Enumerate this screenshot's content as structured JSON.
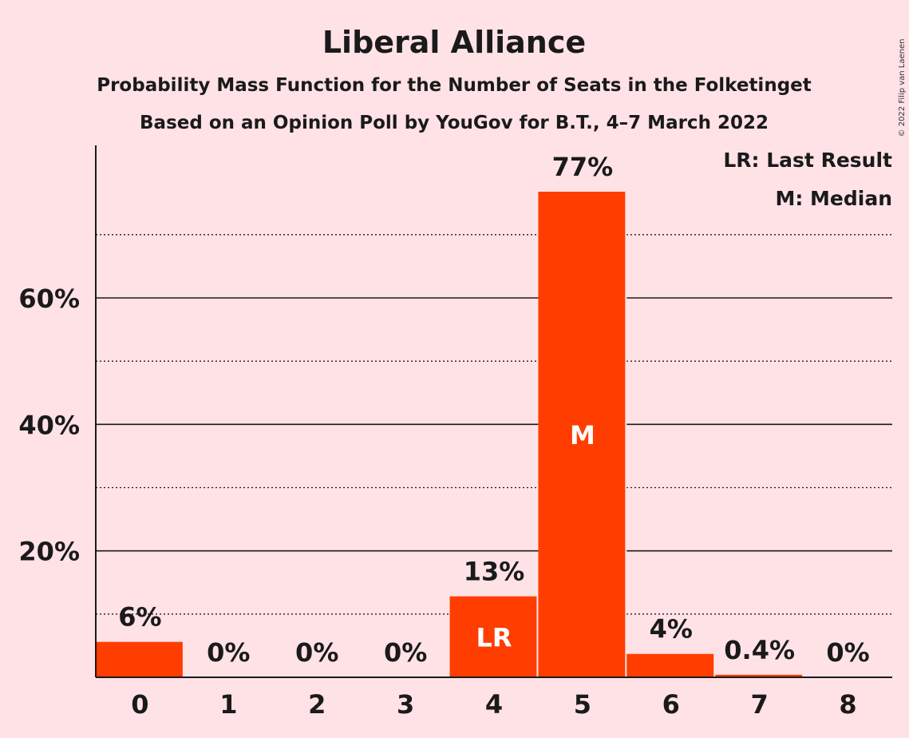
{
  "title": "Liberal Alliance",
  "subtitle1": "Probability Mass Function for the Number of Seats in the Folketinget",
  "subtitle2": "Based on an Opinion Poll by YouGov for B.T., 4–7 March 2022",
  "copyright": "© 2022 Filip van Laenen",
  "legend": [
    "LR: Last Result",
    "M: Median"
  ],
  "colors": {
    "bar": "#ff3d00",
    "background": "#ffe2e6",
    "text": "#1a1a1a"
  },
  "chart_data": {
    "type": "bar",
    "categories": [
      "0",
      "1",
      "2",
      "3",
      "4",
      "5",
      "6",
      "7",
      "8"
    ],
    "values": [
      5.6,
      0,
      0,
      0,
      12.8,
      76.8,
      3.7,
      0.4,
      0
    ],
    "data_labels": [
      "6%",
      "0%",
      "0%",
      "0%",
      "13%",
      "77%",
      "4%",
      "0.4%",
      "0%"
    ],
    "bar_markers": {
      "4": "LR",
      "5": "M"
    },
    "ylim": [
      0,
      84
    ],
    "yticks": [
      20,
      40,
      60
    ],
    "ytick_labels": [
      "20%",
      "40%",
      "60%"
    ],
    "minor_gridlines": [
      10,
      30,
      50,
      70
    ],
    "grid": true,
    "legend_position": "top-right"
  }
}
